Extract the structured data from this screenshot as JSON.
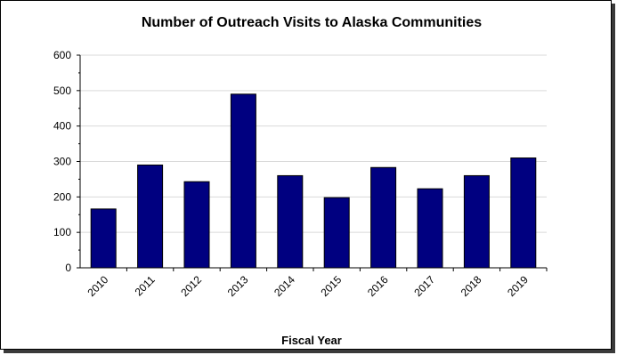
{
  "chart_data": {
    "type": "bar",
    "title": "Number of Outreach Visits to Alaska Communities",
    "xlabel": "Fiscal Year",
    "ylabel": "",
    "categories": [
      "2010",
      "2011",
      "2012",
      "2013",
      "2014",
      "2015",
      "2016",
      "2017",
      "2018",
      "2019"
    ],
    "values": [
      166,
      290,
      243,
      490,
      260,
      198,
      283,
      223,
      260,
      310
    ],
    "ylim": [
      0,
      600
    ],
    "yticks": [
      0,
      100,
      200,
      300,
      400,
      500,
      600
    ],
    "grid": true,
    "legend": "none",
    "bar_color": "#000080",
    "grid_color": "#d9d9d9"
  }
}
